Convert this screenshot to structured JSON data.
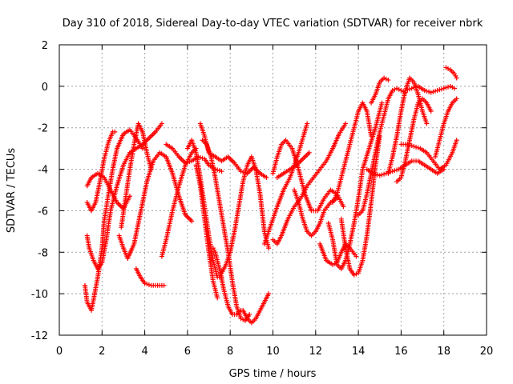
{
  "chart_data": {
    "type": "scatter",
    "title": "Day 310 of 2018, Sidereal Day-to-day VTEC variation (SDTVAR) for receiver nbrk",
    "xlabel": "GPS time / hours",
    "ylabel": "SDTVAR / TECUs",
    "xlim": [
      0,
      20
    ],
    "ylim": [
      -12,
      2
    ],
    "xticks": [
      0,
      2,
      4,
      6,
      8,
      10,
      12,
      14,
      16,
      18,
      20
    ],
    "yticks": [
      -12,
      -10,
      -8,
      -6,
      -4,
      -2,
      0,
      2
    ],
    "grid": true,
    "marker": "+",
    "color": "#ff0000",
    "series": [
      {
        "x": [
          1.2,
          1.3,
          1.5,
          1.6,
          1.8,
          2.0,
          2.1,
          2.3,
          2.5,
          2.7,
          3.0,
          3.3,
          3.6,
          3.9
        ],
        "y": [
          -9.6,
          -10.4,
          -10.8,
          -10.3,
          -9.2,
          -7.8,
          -6.5,
          -5.2,
          -4.0,
          -3.0,
          -2.3,
          -2.1,
          -2.5,
          -3.0
        ]
      },
      {
        "x": [
          1.3,
          1.5,
          1.7,
          1.9,
          2.1,
          2.3,
          2.5,
          2.6
        ],
        "y": [
          -5.6,
          -6.0,
          -5.6,
          -4.6,
          -3.5,
          -2.7,
          -2.2,
          -2.2
        ]
      },
      {
        "x": [
          1.3,
          1.4,
          1.6,
          1.8,
          2.0,
          2.2,
          2.4,
          2.7,
          3.0,
          3.3,
          3.6,
          3.9,
          4.2,
          4.5,
          4.8
        ],
        "y": [
          -7.2,
          -7.8,
          -8.4,
          -8.8,
          -8.5,
          -7.4,
          -6.0,
          -4.8,
          -3.8,
          -3.2,
          -3.0,
          -2.8,
          -2.5,
          -2.2,
          -1.8
        ]
      },
      {
        "x": [
          1.3,
          1.5,
          1.8,
          2.1,
          2.4,
          2.7,
          3.0,
          3.3
        ],
        "y": [
          -4.8,
          -4.4,
          -4.2,
          -4.4,
          -5.0,
          -5.6,
          -5.9,
          -5.3
        ]
      },
      {
        "x": [
          2.8,
          3.0,
          3.2,
          3.5,
          3.8,
          4.1,
          4.4,
          4.7,
          5.0,
          5.3,
          5.6,
          5.9,
          6.2
        ],
        "y": [
          -7.2,
          -7.8,
          -8.3,
          -7.6,
          -6.1,
          -4.6,
          -3.6,
          -3.2,
          -3.4,
          -4.2,
          -5.3,
          -6.2,
          -6.5
        ]
      },
      {
        "x": [
          2.9,
          3.1,
          3.3,
          3.5,
          3.7,
          3.9,
          4.1,
          4.3
        ],
        "y": [
          -6.8,
          -5.4,
          -4.0,
          -2.8,
          -1.8,
          -2.2,
          -3.2,
          -4.0
        ]
      },
      {
        "x": [
          3.6,
          3.8,
          4.0,
          4.3,
          4.6,
          4.9
        ],
        "y": [
          -8.8,
          -9.2,
          -9.5,
          -9.6,
          -9.6,
          -9.6
        ]
      },
      {
        "x": [
          4.8,
          5.0,
          5.3,
          5.6,
          5.9,
          6.2,
          6.4
        ],
        "y": [
          -8.2,
          -7.4,
          -6.0,
          -4.8,
          -3.8,
          -3.2,
          -3.0
        ]
      },
      {
        "x": [
          5.0,
          5.3,
          5.6,
          5.9,
          6.2,
          6.5,
          6.8,
          7.0,
          7.3,
          7.6
        ],
        "y": [
          -2.8,
          -3.0,
          -3.4,
          -3.7,
          -3.6,
          -3.4,
          -3.5,
          -3.8,
          -4.0,
          -4.1
        ]
      },
      {
        "x": [
          6.0,
          6.2,
          6.4,
          6.6,
          6.8,
          7.0,
          7.2,
          7.4,
          7.6
        ],
        "y": [
          -3.0,
          -2.6,
          -3.2,
          -4.4,
          -5.8,
          -7.2,
          -8.4,
          -9.2,
          -9.2
        ]
      },
      {
        "x": [
          6.4,
          6.6,
          6.8,
          7.0,
          7.2,
          7.4
        ],
        "y": [
          -3.8,
          -4.8,
          -6.4,
          -8.0,
          -9.4,
          -10.2
        ]
      },
      {
        "x": [
          6.6,
          6.8,
          7.0,
          7.3,
          7.6,
          7.9,
          8.2,
          8.5,
          8.8,
          9.1,
          9.4,
          9.7
        ],
        "y": [
          -1.8,
          -2.4,
          -3.2,
          -3.4,
          -3.6,
          -3.4,
          -3.7,
          -4.1,
          -4.2,
          -3.9,
          -4.2,
          -4.4
        ]
      },
      {
        "x": [
          6.7,
          6.9,
          7.1,
          7.3,
          7.5,
          7.7,
          7.9,
          8.1,
          8.3,
          8.5,
          8.7,
          8.9
        ],
        "y": [
          -2.6,
          -2.8,
          -3.4,
          -4.4,
          -5.6,
          -6.8,
          -8.0,
          -9.4,
          -10.6,
          -11.2,
          -11.3,
          -11.0
        ]
      },
      {
        "x": [
          7.2,
          7.3,
          7.5,
          7.7,
          7.9,
          8.1,
          8.3,
          8.5
        ],
        "y": [
          -7.8,
          -8.0,
          -8.8,
          -9.8,
          -10.6,
          -11.0,
          -11.0,
          -10.8
        ]
      },
      {
        "x": [
          7.6,
          7.8,
          8.0,
          8.2,
          8.4,
          8.6,
          8.8,
          9.0,
          9.2,
          9.4,
          9.6,
          9.8
        ],
        "y": [
          -9.0,
          -8.6,
          -8.0,
          -7.0,
          -5.8,
          -4.6,
          -3.8,
          -3.4,
          -4.0,
          -5.2,
          -7.0,
          -7.8
        ]
      },
      {
        "x": [
          8.6,
          8.8,
          9.0,
          9.2,
          9.4,
          9.6,
          9.8
        ],
        "y": [
          -10.8,
          -11.2,
          -11.4,
          -11.2,
          -10.8,
          -10.4,
          -10.0
        ]
      },
      {
        "x": [
          9.6,
          9.8,
          10.0,
          10.2,
          10.5,
          10.8,
          11.0,
          11.2,
          11.4,
          11.6
        ],
        "y": [
          -7.6,
          -7.0,
          -6.4,
          -5.8,
          -5.0,
          -4.4,
          -3.8,
          -3.2,
          -2.5,
          -1.8
        ]
      },
      {
        "x": [
          10.0,
          10.2,
          10.4,
          10.6,
          10.9,
          11.2,
          11.5,
          11.8,
          12.1,
          12.4,
          12.7,
          13.0,
          13.3
        ],
        "y": [
          -4.2,
          -3.4,
          -2.8,
          -2.6,
          -3.0,
          -4.0,
          -5.2,
          -6.0,
          -6.0,
          -5.4,
          -5.0,
          -5.2,
          -5.8
        ]
      },
      {
        "x": [
          10.0,
          10.2,
          10.4,
          10.7,
          11.0,
          11.3,
          11.6,
          11.9,
          12.2,
          12.5,
          12.8,
          13.1,
          13.4
        ],
        "y": [
          -7.4,
          -7.6,
          -7.2,
          -6.4,
          -5.8,
          -5.4,
          -4.8,
          -4.4,
          -4.0,
          -3.6,
          -3.0,
          -2.3,
          -1.8
        ]
      },
      {
        "x": [
          10.2,
          10.5,
          10.8,
          11.1,
          11.4,
          11.7
        ],
        "y": [
          -4.4,
          -4.2,
          -4.0,
          -3.8,
          -3.5,
          -3.2
        ]
      },
      {
        "x": [
          11.0,
          11.2,
          11.4,
          11.6,
          11.8,
          12.0,
          12.2,
          12.4,
          12.7,
          13.0
        ],
        "y": [
          -5.0,
          -5.6,
          -6.4,
          -7.0,
          -7.2,
          -7.0,
          -6.6,
          -6.0,
          -5.6,
          -5.4
        ]
      },
      {
        "x": [
          12.2,
          12.5,
          12.8,
          13.0,
          13.2,
          13.4,
          13.6,
          13.9
        ],
        "y": [
          -7.6,
          -8.4,
          -8.6,
          -8.5,
          -8.0,
          -7.6,
          -7.8,
          -8.2
        ]
      },
      {
        "x": [
          12.6,
          12.8,
          13.0,
          13.2,
          13.4,
          13.6,
          13.8,
          14.0,
          14.2,
          14.5,
          14.8,
          15.1
        ],
        "y": [
          -6.6,
          -7.4,
          -8.6,
          -8.8,
          -8.4,
          -7.6,
          -6.6,
          -5.4,
          -4.0,
          -3.0,
          -2.0,
          -0.8
        ]
      },
      {
        "x": [
          12.8,
          13.0,
          13.2,
          13.4,
          13.6,
          13.8,
          14.0,
          14.2,
          14.4,
          14.6
        ],
        "y": [
          -5.6,
          -5.2,
          -4.4,
          -3.6,
          -2.8,
          -2.0,
          -1.2,
          -0.8,
          -1.2,
          -2.4
        ]
      },
      {
        "x": [
          13.2,
          13.4,
          13.6,
          13.8,
          14.0,
          14.2,
          14.4,
          14.6,
          14.8,
          15.0
        ],
        "y": [
          -6.4,
          -7.8,
          -8.8,
          -9.1,
          -9.0,
          -8.4,
          -7.2,
          -5.6,
          -3.8,
          -2.4
        ]
      },
      {
        "x": [
          14.0,
          14.2,
          14.4,
          14.6,
          14.8,
          15.0,
          15.2,
          15.4,
          15.6,
          15.8,
          16.0,
          16.2
        ],
        "y": [
          -6.2,
          -6.0,
          -5.2,
          -4.2,
          -3.2,
          -2.2,
          -1.4,
          -0.6,
          -0.2,
          -0.1,
          -0.2,
          -0.3
        ]
      },
      {
        "x": [
          14.6,
          14.8,
          15.0,
          15.2,
          15.4
        ],
        "y": [
          -0.8,
          -0.4,
          0.2,
          0.4,
          0.3
        ]
      },
      {
        "x": [
          14.4,
          14.7,
          15.0,
          15.3,
          15.6,
          15.9,
          16.2,
          16.5,
          16.8,
          17.1,
          17.4,
          17.7,
          18.0
        ],
        "y": [
          -4.0,
          -4.2,
          -4.3,
          -4.2,
          -4.1,
          -4.0,
          -3.8,
          -3.6,
          -3.6,
          -3.8,
          -4.0,
          -4.2,
          -4.0
        ]
      },
      {
        "x": [
          15.4,
          15.6,
          15.8,
          16.0,
          16.2,
          16.4,
          16.6,
          16.8,
          17.0,
          17.2
        ],
        "y": [
          -4.2,
          -3.4,
          -2.4,
          -1.2,
          -0.2,
          0.4,
          0.2,
          -0.4,
          -1.2,
          -1.8
        ]
      },
      {
        "x": [
          15.8,
          16.0,
          16.2,
          16.4,
          16.6,
          16.8,
          17.0,
          17.2,
          17.4
        ],
        "y": [
          -4.6,
          -4.4,
          -3.6,
          -2.6,
          -1.6,
          -0.8,
          -0.6,
          -0.8,
          -1.2
        ]
      },
      {
        "x": [
          16.0,
          16.3,
          16.6,
          16.9,
          17.2,
          17.5,
          17.8,
          18.1,
          18.4,
          18.6
        ],
        "y": [
          -2.8,
          -2.8,
          -2.9,
          -3.0,
          -3.2,
          -3.6,
          -4.0,
          -3.8,
          -3.2,
          -2.6
        ]
      },
      {
        "x": [
          16.2,
          16.5,
          16.8,
          17.1,
          17.4,
          17.7,
          18.0,
          18.3,
          18.5
        ],
        "y": [
          -0.2,
          -0.1,
          0.0,
          -0.2,
          -0.3,
          -0.2,
          -0.1,
          0.0,
          -0.1
        ]
      },
      {
        "x": [
          17.6,
          17.8,
          18.0,
          18.2,
          18.4,
          18.6
        ],
        "y": [
          -3.4,
          -2.6,
          -1.8,
          -1.2,
          -0.8,
          -0.6
        ]
      },
      {
        "x": [
          18.1,
          18.3,
          18.5,
          18.6
        ],
        "y": [
          0.9,
          0.8,
          0.6,
          0.4
        ]
      }
    ]
  }
}
